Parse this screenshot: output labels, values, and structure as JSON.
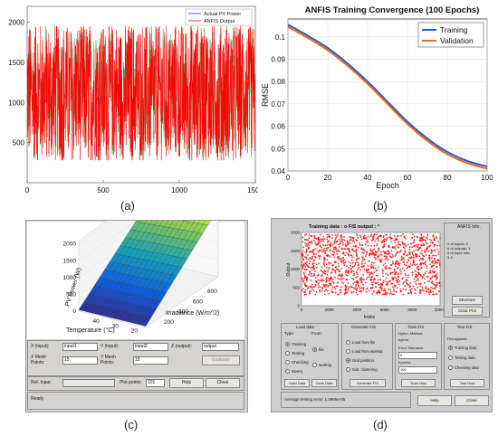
{
  "chart_data": [
    {
      "id": "a",
      "type": "line",
      "caption": "(a)",
      "x_ticks": [
        0,
        500,
        1000,
        1500
      ],
      "y_ticks": [
        500,
        1000,
        1500,
        2000
      ],
      "xlim": [
        0,
        1500
      ],
      "ylim": [
        0,
        2200
      ],
      "series": [
        {
          "name": "Actual PV Power",
          "color": "#2b2bd6"
        },
        {
          "name": "ANFIS Output",
          "color": "#ff0000"
        }
      ],
      "value_range": [
        280,
        1950
      ],
      "legend": "top-right"
    },
    {
      "id": "b",
      "type": "line",
      "caption": "(b)",
      "title": "ANFIS Training Convergence (100 Epochs)",
      "xlabel": "Epoch",
      "ylabel": "RMSE",
      "x_ticks": [
        0,
        20,
        40,
        60,
        80,
        100
      ],
      "y_ticks": [
        0.04,
        0.05,
        0.06,
        0.07,
        0.08,
        0.09,
        0.1
      ],
      "xlim": [
        0,
        100
      ],
      "ylim": [
        0.04,
        0.108
      ],
      "x": [
        0,
        10,
        20,
        30,
        40,
        50,
        60,
        70,
        80,
        90,
        100
      ],
      "series": [
        {
          "name": "Training",
          "color": "#2e55d0",
          "values": [
            0.1055,
            0.1005,
            0.095,
            0.088,
            0.08,
            0.071,
            0.062,
            0.0545,
            0.0485,
            0.0445,
            0.042
          ]
        },
        {
          "name": "Validation",
          "color": "#e0701f",
          "values": [
            0.1045,
            0.0995,
            0.094,
            0.087,
            0.079,
            0.07,
            0.061,
            0.0535,
            0.0475,
            0.0435,
            0.041
          ]
        }
      ],
      "grid": true,
      "legend": "top-right"
    },
    {
      "id": "c",
      "type": "surface",
      "caption": "(c)",
      "zlabel": "PV Power (W)",
      "xlabel": "Temperature (°C)",
      "ylabel": "Irradiance (W/m^2)",
      "z_ticks": [
        0,
        500,
        1000,
        1500,
        2000
      ],
      "temp_ticks": [
        20,
        30,
        40
      ],
      "irr_ticks": [
        200,
        400,
        600,
        800
      ],
      "z_range": [
        0,
        2100
      ]
    },
    {
      "id": "d",
      "type": "scatter",
      "caption": "(d)",
      "title": "Training data : o   FIS output : *",
      "xlabel": "Index",
      "ylabel": "Output",
      "x_ticks": [
        0,
        2000,
        4000,
        6000,
        8000,
        10000
      ],
      "y_ticks": [
        0,
        500,
        1000,
        1500,
        2000
      ],
      "xlim": [
        0,
        10000
      ],
      "ylim": [
        0,
        2000
      ],
      "value_range": [
        300,
        1950
      ],
      "color": "#ff0000"
    }
  ],
  "gui_c": {
    "x_input_label": "X (input):",
    "x_input_value": "input1",
    "y_input_label": "Y (input):",
    "y_input_value": "input2",
    "z_output_label": "Z (output):",
    "z_output_value": "output",
    "x_mesh_label": "X Mesh Points:",
    "x_mesh_value": "15",
    "y_mesh_label": "Y Mesh Points:",
    "y_mesh_value": "15",
    "evaluate_label": "Evaluate",
    "ref_input_label": "Ref. Input:",
    "plot_points_label": "Plot points:",
    "plot_points_value": "101",
    "help_label": "Help",
    "close_label": "Close",
    "status": "Ready"
  },
  "gui_d": {
    "info_title": "ANFIS Info.",
    "info_lines": [
      "# of inputs: 2",
      "# of outputs: 1",
      "# of input mfs:",
      "3  3"
    ],
    "structure_label": "Structure",
    "clear_plot_label": "Clear Plot",
    "load_data_title": "Load data",
    "type_label": "Type:",
    "from_label": "From:",
    "type_options": [
      "Training",
      "Testing",
      "Checking",
      "Demo"
    ],
    "from_options": [
      "file",
      "worksp."
    ],
    "load_data_btn": "Load Data",
    "clear_data_btn": "Clear Data",
    "generate_title": "Generate FIS",
    "generate_options": [
      "Load from file",
      "Load from worksp.",
      "Grid partition",
      "Sub. clustering"
    ],
    "generate_btn": "Generate FIS",
    "train_title": "Train FIS",
    "optim_label": "Optim. Method:",
    "optim_value": "hybrid",
    "error_tol_label": "Error Tolerance:",
    "error_tol_value": "0",
    "epochs_label": "Epochs:",
    "epochs_value": "100",
    "train_btn": "Train Now",
    "test_title": "Test FIS",
    "plot_against_label": "Plot against:",
    "test_options": [
      "Training data",
      "Testing data",
      "Checking data"
    ],
    "test_btn": "Test Now",
    "status": "Average testing error: 1.0885e-06",
    "help_label": "Help",
    "close_label": "Close"
  }
}
